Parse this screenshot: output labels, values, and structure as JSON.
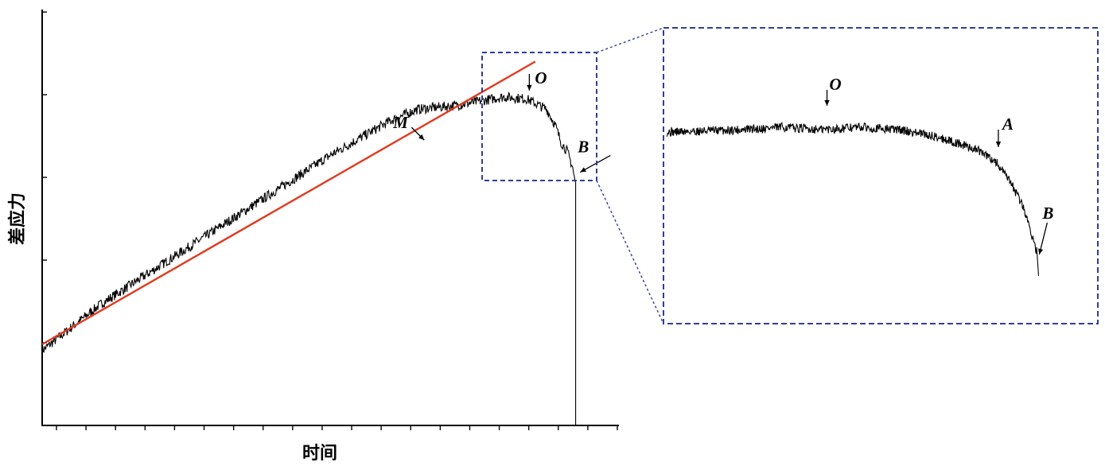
{
  "colors": {
    "signal": "#000000",
    "fit_line": "#e03a1e",
    "zoom_box": "#2e3e9c",
    "axis": "#000000"
  },
  "chart_data": {
    "type": "line",
    "title": "",
    "xlabel": "时间",
    "ylabel": "差应力",
    "tick_labels_visible": false,
    "x_ticks": 20,
    "y_ticks": 5,
    "grid": false,
    "legend": "none",
    "xlim": [
      0,
      1
    ],
    "ylim": [
      0,
      1
    ],
    "series": [
      {
        "role": "differential-stress-signal",
        "x": [
          0.0,
          0.1,
          0.2,
          0.3,
          0.4,
          0.5,
          0.6,
          0.65,
          0.72,
          0.8,
          0.84,
          0.875,
          0.89,
          0.9,
          0.91,
          0.92,
          0.922,
          0.925,
          0.925
        ],
        "y": [
          0.18,
          0.29,
          0.38,
          0.47,
          0.56,
          0.65,
          0.73,
          0.76,
          0.77,
          0.79,
          0.785,
          0.76,
          0.72,
          0.68,
          0.66,
          0.62,
          0.6,
          0.58,
          0.0
        ],
        "noise": 0.012
      },
      {
        "role": "linear-fit-M",
        "x": [
          0.0,
          0.855
        ],
        "y": [
          0.195,
          0.875
        ]
      }
    ],
    "annotations": [
      {
        "label": "M",
        "x": 0.61,
        "y": 0.69
      },
      {
        "label": "O",
        "x": 0.835,
        "y": 0.83
      },
      {
        "label": "B",
        "x": 0.93,
        "y": 0.63
      }
    ],
    "inset": {
      "title": "",
      "source_xrange": [
        0.765,
        0.96
      ],
      "source_yrange": [
        0.59,
        0.9
      ],
      "series": {
        "x": [
          0.0,
          0.1,
          0.2,
          0.3,
          0.4,
          0.5,
          0.6,
          0.7,
          0.8,
          0.85,
          0.89,
          0.92,
          0.94,
          0.955,
          0.96
        ],
        "y": [
          0.68,
          0.685,
          0.69,
          0.7,
          0.69,
          0.7,
          0.69,
          0.66,
          0.61,
          0.56,
          0.47,
          0.38,
          0.28,
          0.2,
          0.1
        ],
        "noise": 0.018
      },
      "annotations": [
        {
          "label": "O",
          "x": 0.42
        },
        {
          "label": "A",
          "x": 0.85
        },
        {
          "label": "B",
          "x": 0.97
        }
      ]
    }
  }
}
